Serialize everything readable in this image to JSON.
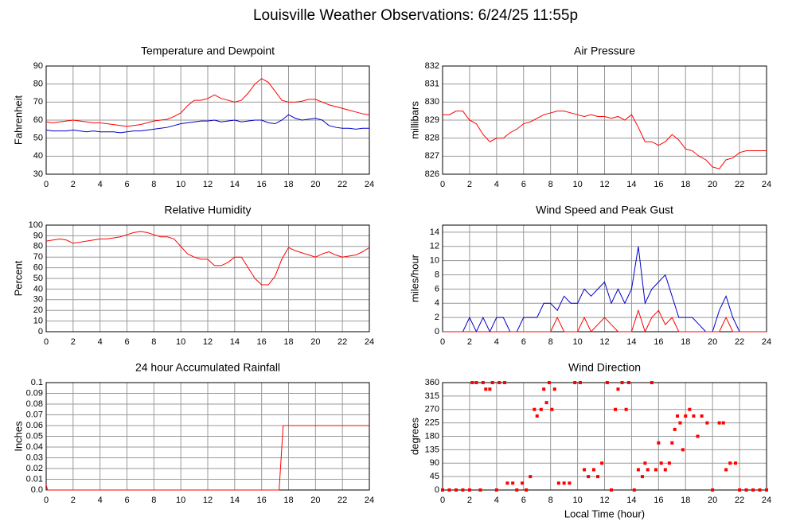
{
  "title": "Louisville Weather Observations: 6/24/25 11:55p",
  "chart_data": [
    {
      "type": "line",
      "title": "Temperature and Dewpoint",
      "ylabel": "Fahrenheit",
      "x": [
        0,
        0.5,
        1,
        1.5,
        2,
        2.5,
        3,
        3.5,
        4,
        4.5,
        5,
        5.5,
        6,
        6.5,
        7,
        7.5,
        8,
        8.5,
        9,
        9.5,
        10,
        10.5,
        11,
        11.5,
        12,
        12.5,
        13,
        13.5,
        14,
        14.5,
        15,
        15.5,
        16,
        16.5,
        17,
        17.5,
        18,
        18.5,
        19,
        19.5,
        20,
        20.5,
        21,
        21.5,
        22,
        22.5,
        23,
        23.5,
        24
      ],
      "series": [
        {
          "color": "#ff0000",
          "values": [
            59,
            58.5,
            59,
            59.5,
            60,
            59.5,
            59,
            58.5,
            58.5,
            58,
            57.5,
            57,
            56.5,
            57,
            57.5,
            58.5,
            59.5,
            60,
            60.5,
            62,
            64,
            68,
            71,
            71,
            72,
            74,
            72,
            71,
            70,
            71,
            75,
            80,
            83,
            81,
            76,
            71,
            70,
            70,
            70.5,
            71.5,
            71.5,
            70,
            68.5,
            67.5,
            66.5,
            65.5,
            64.5,
            63.5,
            63
          ]
        },
        {
          "color": "#0000cc",
          "values": [
            54.5,
            54,
            54,
            54,
            54.5,
            54,
            53.5,
            54,
            53.5,
            53.5,
            53.5,
            53,
            53.5,
            54,
            54,
            54.5,
            55,
            55.5,
            56,
            57,
            58,
            58.5,
            59,
            59.5,
            59.5,
            60,
            59,
            59.5,
            60,
            59,
            59.5,
            60,
            60,
            58.5,
            58,
            60,
            63,
            61,
            60,
            60.5,
            61,
            60,
            57,
            56,
            55.5,
            55.5,
            55,
            55.5,
            55.5
          ]
        }
      ],
      "xlim": [
        0,
        24
      ],
      "xticks": [
        0,
        2,
        4,
        6,
        8,
        10,
        12,
        14,
        16,
        18,
        20,
        22,
        24
      ],
      "ylim": [
        30,
        90
      ],
      "yticks": [
        30,
        40,
        50,
        60,
        70,
        80,
        90
      ],
      "grid": true
    },
    {
      "type": "line",
      "title": "Air Pressure",
      "ylabel": "millibars",
      "x": [
        0,
        0.5,
        1,
        1.5,
        2,
        2.5,
        3,
        3.5,
        4,
        4.5,
        5,
        5.5,
        6,
        6.5,
        7,
        7.5,
        8,
        8.5,
        9,
        9.5,
        10,
        10.5,
        11,
        11.5,
        12,
        12.5,
        13,
        13.5,
        14,
        14.5,
        15,
        15.5,
        16,
        16.5,
        17,
        17.5,
        18,
        18.5,
        19,
        19.5,
        20,
        20.5,
        21,
        21.5,
        22,
        22.5,
        23,
        23.5,
        24
      ],
      "series": [
        {
          "color": "#ff0000",
          "values": [
            829.3,
            829.3,
            829.5,
            829.5,
            829.0,
            828.8,
            828.2,
            827.8,
            828.0,
            828.0,
            828.3,
            828.5,
            828.8,
            828.9,
            829.1,
            829.3,
            829.4,
            829.5,
            829.5,
            829.4,
            829.3,
            829.2,
            829.3,
            829.2,
            829.2,
            829.1,
            829.2,
            829.0,
            829.3,
            828.6,
            827.8,
            827.8,
            827.6,
            827.8,
            828.2,
            827.9,
            827.4,
            827.3,
            827.0,
            826.8,
            826.4,
            826.3,
            826.8,
            826.9,
            827.2,
            827.3,
            827.3,
            827.3,
            827.3
          ]
        }
      ],
      "xlim": [
        0,
        24
      ],
      "xticks": [
        0,
        2,
        4,
        6,
        8,
        10,
        12,
        14,
        16,
        18,
        20,
        22,
        24
      ],
      "ylim": [
        826,
        832
      ],
      "yticks": [
        826,
        827,
        828,
        829,
        830,
        831,
        832
      ],
      "grid": true
    },
    {
      "type": "line",
      "title": "Relative Humidity",
      "ylabel": "Percent",
      "x": [
        0,
        0.5,
        1,
        1.5,
        2,
        2.5,
        3,
        3.5,
        4,
        4.5,
        5,
        5.5,
        6,
        6.5,
        7,
        7.5,
        8,
        8.5,
        9,
        9.5,
        10,
        10.5,
        11,
        11.5,
        12,
        12.5,
        13,
        13.5,
        14,
        14.5,
        15,
        15.5,
        16,
        16.5,
        17,
        17.5,
        18,
        18.5,
        19,
        19.5,
        20,
        20.5,
        21,
        21.5,
        22,
        22.5,
        23,
        23.5,
        24
      ],
      "series": [
        {
          "color": "#ff0000",
          "values": [
            85,
            86,
            87,
            86,
            83,
            84,
            85,
            86,
            87,
            87,
            88,
            89,
            91,
            93,
            94,
            93,
            91,
            89,
            89,
            87,
            80,
            73,
            70,
            68,
            68,
            62,
            62,
            65,
            70,
            70,
            60,
            50,
            44,
            44,
            52,
            68,
            79,
            76,
            74,
            72,
            70,
            73,
            75,
            72,
            70,
            71,
            72,
            75,
            79
          ]
        }
      ],
      "xlim": [
        0,
        24
      ],
      "xticks": [
        0,
        2,
        4,
        6,
        8,
        10,
        12,
        14,
        16,
        18,
        20,
        22,
        24
      ],
      "ylim": [
        0,
        100
      ],
      "yticks": [
        0,
        10,
        20,
        30,
        40,
        50,
        60,
        70,
        80,
        90,
        100
      ],
      "grid": true
    },
    {
      "type": "line",
      "title": "Wind Speed and Peak Gust",
      "ylabel": "miles/hour",
      "x": [
        0,
        0.5,
        1,
        1.5,
        2,
        2.5,
        3,
        3.5,
        4,
        4.5,
        5,
        5.5,
        6,
        6.5,
        7,
        7.5,
        8,
        8.5,
        9,
        9.5,
        10,
        10.5,
        11,
        11.5,
        12,
        12.5,
        13,
        13.5,
        14,
        14.5,
        15,
        15.5,
        16,
        16.5,
        17,
        17.5,
        18,
        18.5,
        19,
        19.5,
        20,
        20.5,
        21,
        21.5,
        22,
        22.5,
        23,
        23.5,
        24
      ],
      "series": [
        {
          "color": "#0000cc",
          "values": [
            0,
            0,
            0,
            0,
            2,
            0,
            2,
            0,
            2,
            2,
            0,
            0,
            2,
            2,
            2,
            4,
            4,
            3,
            5,
            4,
            4,
            6,
            5,
            6,
            7,
            4,
            6,
            4,
            6,
            12,
            4,
            6,
            7,
            8,
            5,
            2,
            2,
            2,
            1,
            0,
            0,
            3,
            5,
            2,
            0,
            0,
            0,
            0,
            0
          ]
        },
        {
          "color": "#ff0000",
          "values": [
            0,
            0,
            0,
            0,
            0,
            0,
            0,
            0,
            0,
            0,
            0,
            0,
            0,
            0,
            0,
            0,
            0,
            2,
            0,
            0,
            0,
            2,
            0,
            1,
            2,
            1,
            0,
            0,
            0,
            3,
            0,
            2,
            3,
            1,
            2,
            0,
            0,
            0,
            0,
            0,
            0,
            0,
            2,
            0,
            0,
            0,
            0,
            0,
            0
          ]
        }
      ],
      "xlim": [
        0,
        24
      ],
      "xticks": [
        0,
        2,
        4,
        6,
        8,
        10,
        12,
        14,
        16,
        18,
        20,
        22,
        24
      ],
      "ylim": [
        0,
        15
      ],
      "yticks": [
        0,
        2,
        4,
        6,
        8,
        10,
        12,
        14
      ],
      "grid": true
    },
    {
      "type": "line",
      "title": "24 hour Accumulated Rainfall",
      "ylabel": "Inches",
      "x": [
        0,
        0.1,
        17.3,
        17.6,
        24
      ],
      "series": [
        {
          "color": "#ff0000",
          "values": [
            0.005,
            0,
            0,
            0.06,
            0.06
          ]
        }
      ],
      "xlim": [
        0,
        24
      ],
      "xticks": [
        0,
        2,
        4,
        6,
        8,
        10,
        12,
        14,
        16,
        18,
        20,
        22,
        24
      ],
      "ylim": [
        0,
        0.1
      ],
      "yticks": [
        {
          "value": 0,
          "label": "0.0"
        },
        0.01,
        0.02,
        0.03,
        0.04,
        0.05,
        0.06,
        0.07,
        0.08,
        0.09,
        0.1
      ],
      "grid": true
    },
    {
      "type": "scatter",
      "title": "Wind Direction",
      "ylabel": "degrees",
      "xlabel": "Local Time (hour)",
      "x": [
        0,
        0.5,
        1,
        1.5,
        2,
        2.2,
        2.5,
        2.8,
        3,
        3.2,
        3.5,
        3.7,
        4,
        4.2,
        4.6,
        4.8,
        5.2,
        5.5,
        5.9,
        6.2,
        6.5,
        6.8,
        7,
        7.3,
        7.5,
        7.7,
        7.9,
        8.1,
        8.3,
        8.6,
        9,
        9.4,
        9.8,
        10.2,
        10.5,
        10.8,
        11.2,
        11.5,
        11.8,
        12.2,
        12.5,
        12.8,
        13,
        13.3,
        13.6,
        13.8,
        14.2,
        14.5,
        14.8,
        15,
        15.2,
        15.5,
        15.8,
        16,
        16.2,
        16.5,
        16.8,
        17,
        17.2,
        17.4,
        17.6,
        17.8,
        18,
        18.3,
        18.6,
        18.9,
        19.2,
        19.6,
        20,
        20.5,
        20.8,
        21,
        21.3,
        21.7,
        22,
        22.5,
        23,
        23.5,
        24
      ],
      "values": [
        0,
        0,
        0,
        0,
        0,
        360,
        360,
        0,
        360,
        338,
        338,
        360,
        0,
        360,
        360,
        23,
        23,
        0,
        23,
        0,
        45,
        270,
        248,
        270,
        338,
        293,
        360,
        270,
        338,
        23,
        23,
        23,
        360,
        360,
        68,
        45,
        68,
        45,
        90,
        360,
        0,
        270,
        338,
        360,
        270,
        360,
        0,
        68,
        45,
        90,
        68,
        360,
        68,
        158,
        90,
        68,
        90,
        158,
        203,
        248,
        225,
        135,
        248,
        270,
        248,
        180,
        248,
        225,
        0,
        225,
        225,
        68,
        90,
        90,
        0,
        0,
        0,
        0,
        0
      ],
      "color": "#ff0000",
      "xlim": [
        0,
        24
      ],
      "xticks": [
        0,
        2,
        4,
        6,
        8,
        10,
        12,
        14,
        16,
        18,
        20,
        22,
        24
      ],
      "ylim": [
        0,
        360
      ],
      "yticks": [
        0,
        45,
        90,
        135,
        180,
        225,
        270,
        315,
        360
      ],
      "grid": true
    }
  ]
}
